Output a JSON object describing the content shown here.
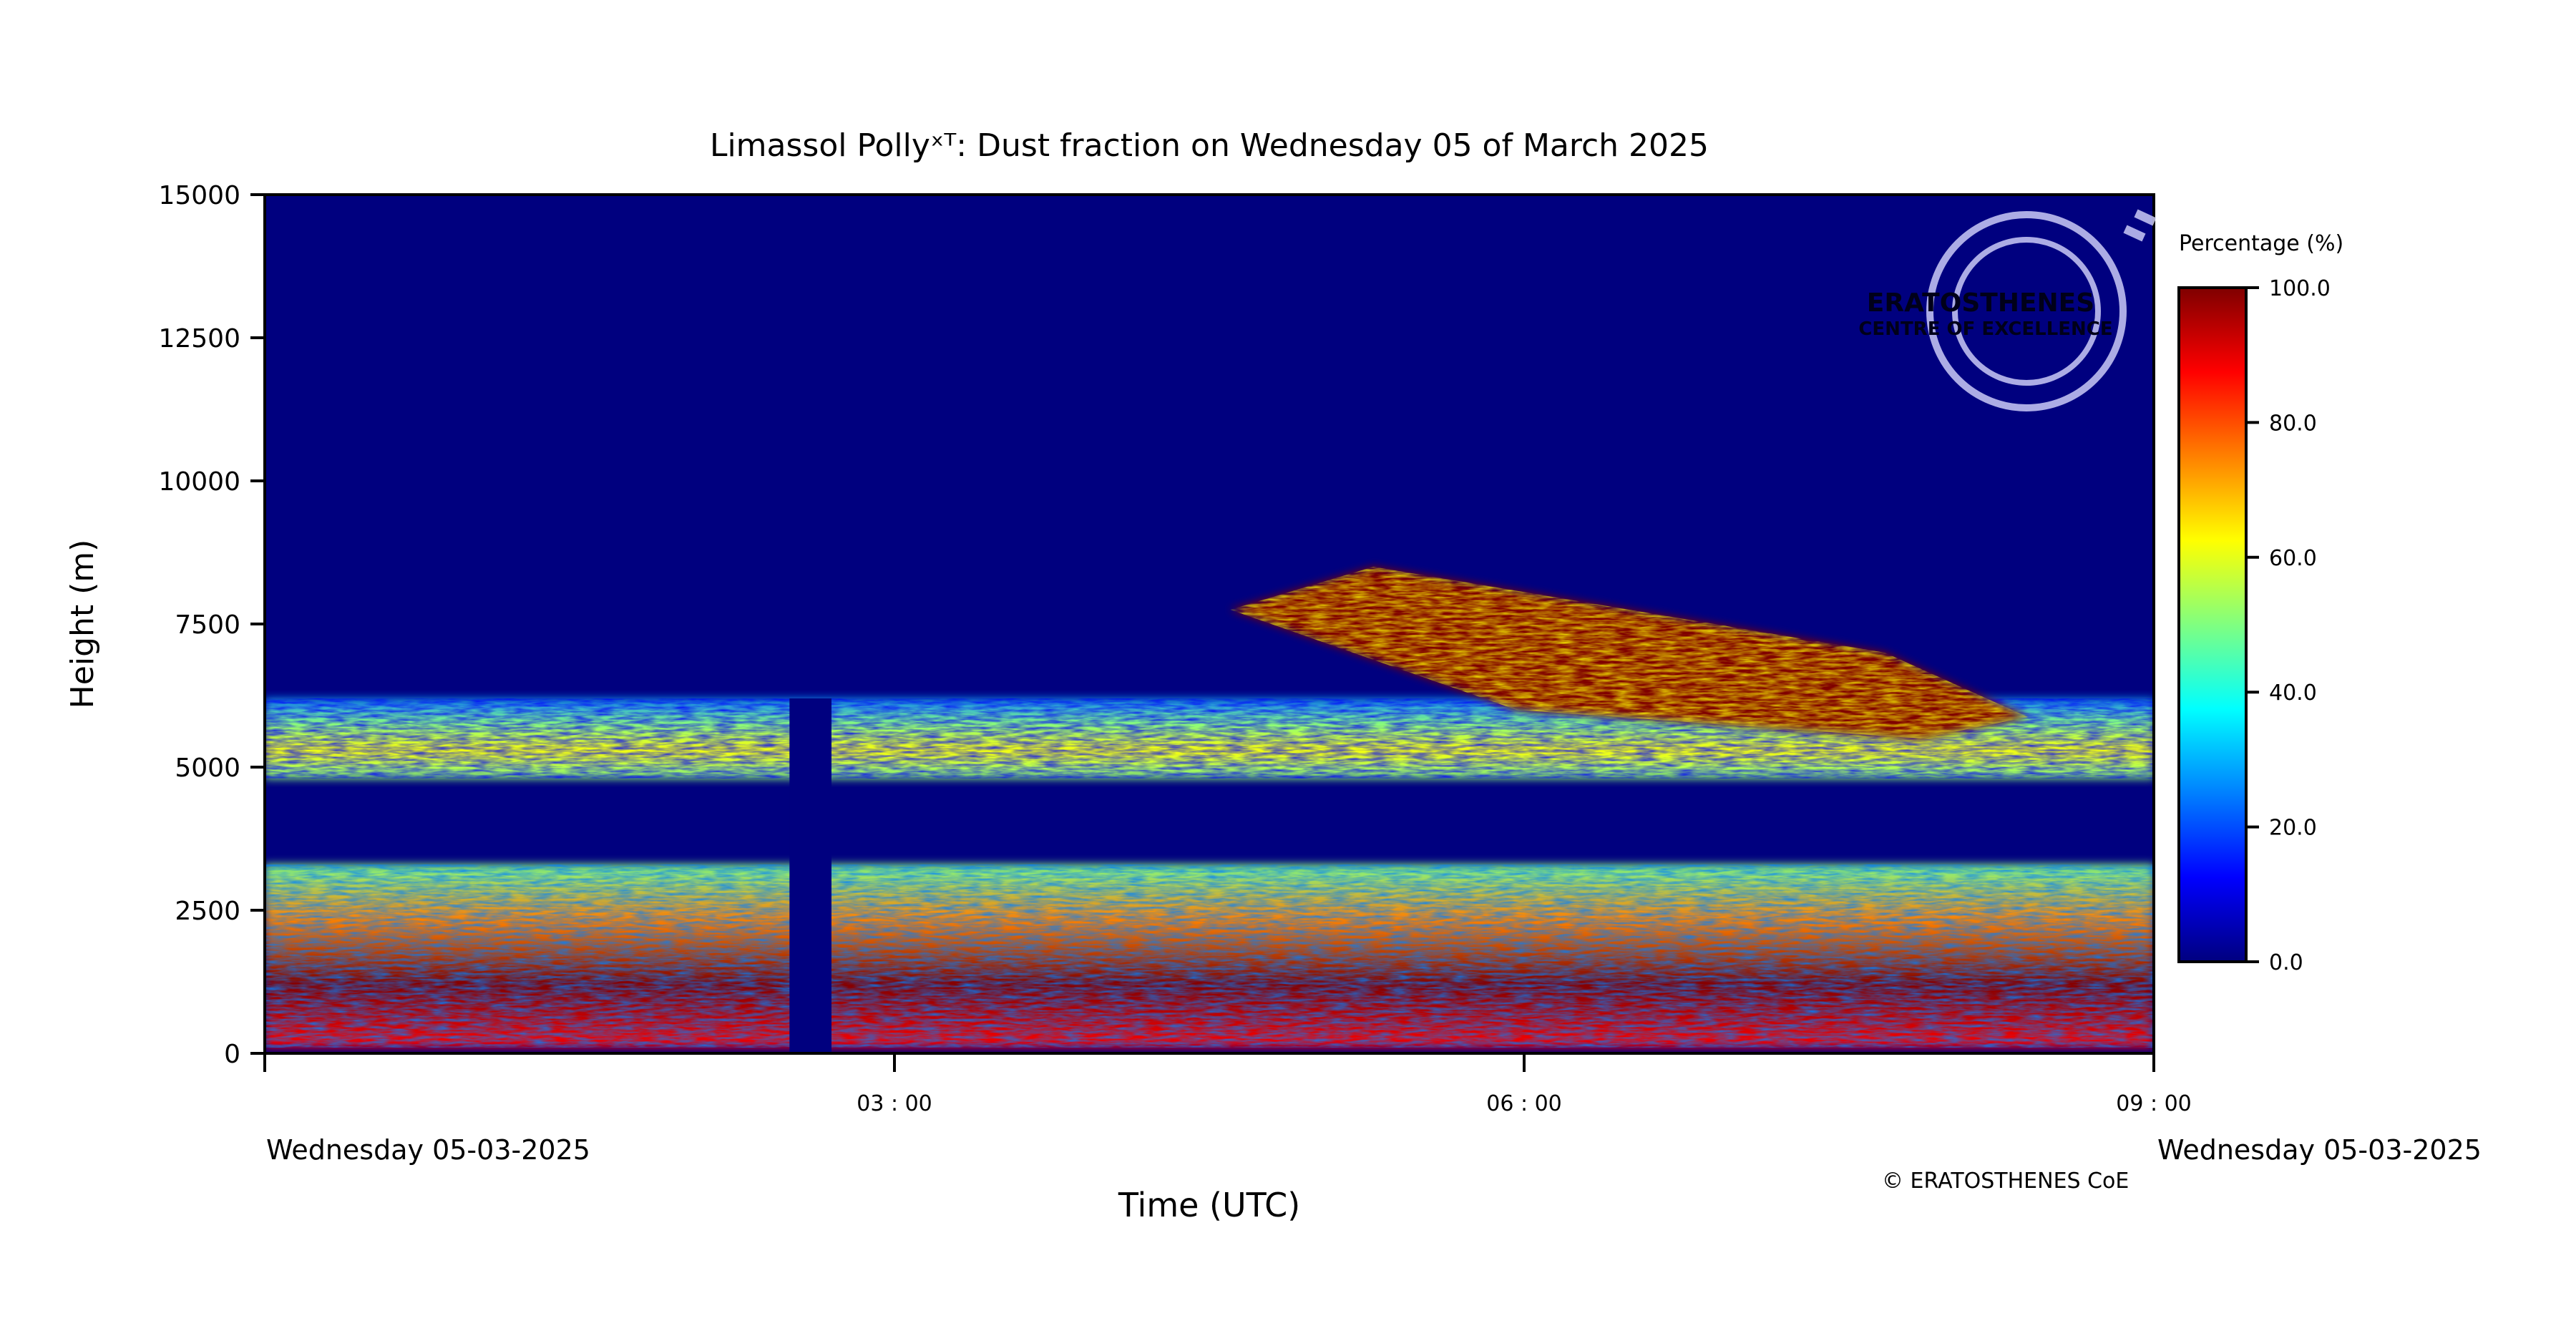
{
  "chart_data": {
    "type": "heatmap",
    "title": "Limassol Pollyˣᵀ: Dust fraction on Wednesday 05 of March 2025",
    "xlabel": "Time (UTC)",
    "ylabel": "Height (m)",
    "x_ticks": [
      {
        "value": 0,
        "label": ""
      },
      {
        "value": 3,
        "label": "03 : 00"
      },
      {
        "value": 6,
        "label": "06 : 00"
      },
      {
        "value": 9,
        "label": "09 : 00"
      }
    ],
    "x_unit": "hours UTC",
    "xlim": [
      0,
      9
    ],
    "y_ticks": [
      0,
      2500,
      5000,
      7500,
      10000,
      12500,
      15000
    ],
    "ylim": [
      0,
      15000
    ],
    "date_left": "Wednesday 05-03-2025",
    "date_right": "Wednesday 05-03-2025",
    "data_gap_hours": [
      2.5,
      2.7
    ],
    "colorbar": {
      "label": "Percentage (%)",
      "ticks": [
        0.0,
        20.0,
        40.0,
        60.0,
        80.0,
        100.0
      ],
      "tick_labels": [
        "0.0",
        "20.0",
        "40.0",
        "60.0",
        "80.0",
        "100.0"
      ],
      "range": [
        0,
        100
      ],
      "colormap": "jet",
      "stops": [
        "#00007f",
        "#0000ff",
        "#0080ff",
        "#00ffff",
        "#80ff80",
        "#ffff00",
        "#ff8000",
        "#ff0000",
        "#7f0000"
      ]
    },
    "layers": [
      {
        "t_start": 0.0,
        "t_end": 9.0,
        "h_bottom": 100,
        "h_top": 3300,
        "dust_pct_range": [
          50,
          100
        ],
        "note_color": "#ff6000"
      },
      {
        "t_start": 0.0,
        "t_end": 9.0,
        "h_bottom": 4800,
        "h_top": 6200,
        "dust_pct_range": [
          30,
          60
        ],
        "note_color": "#40ffb0"
      },
      {
        "t_start": 4.6,
        "t_end": 8.4,
        "h_bottom": 5500,
        "h_top": 8500,
        "dust_pct_range": [
          60,
          100
        ],
        "note_color": "#c00000"
      }
    ],
    "background_pct": 0
  },
  "watermark": {
    "line1": "ERATOSTHENES",
    "line2": "CENTRE OF EXCELLENCE"
  },
  "copyright": "©   ERATOSTHENES CoE"
}
